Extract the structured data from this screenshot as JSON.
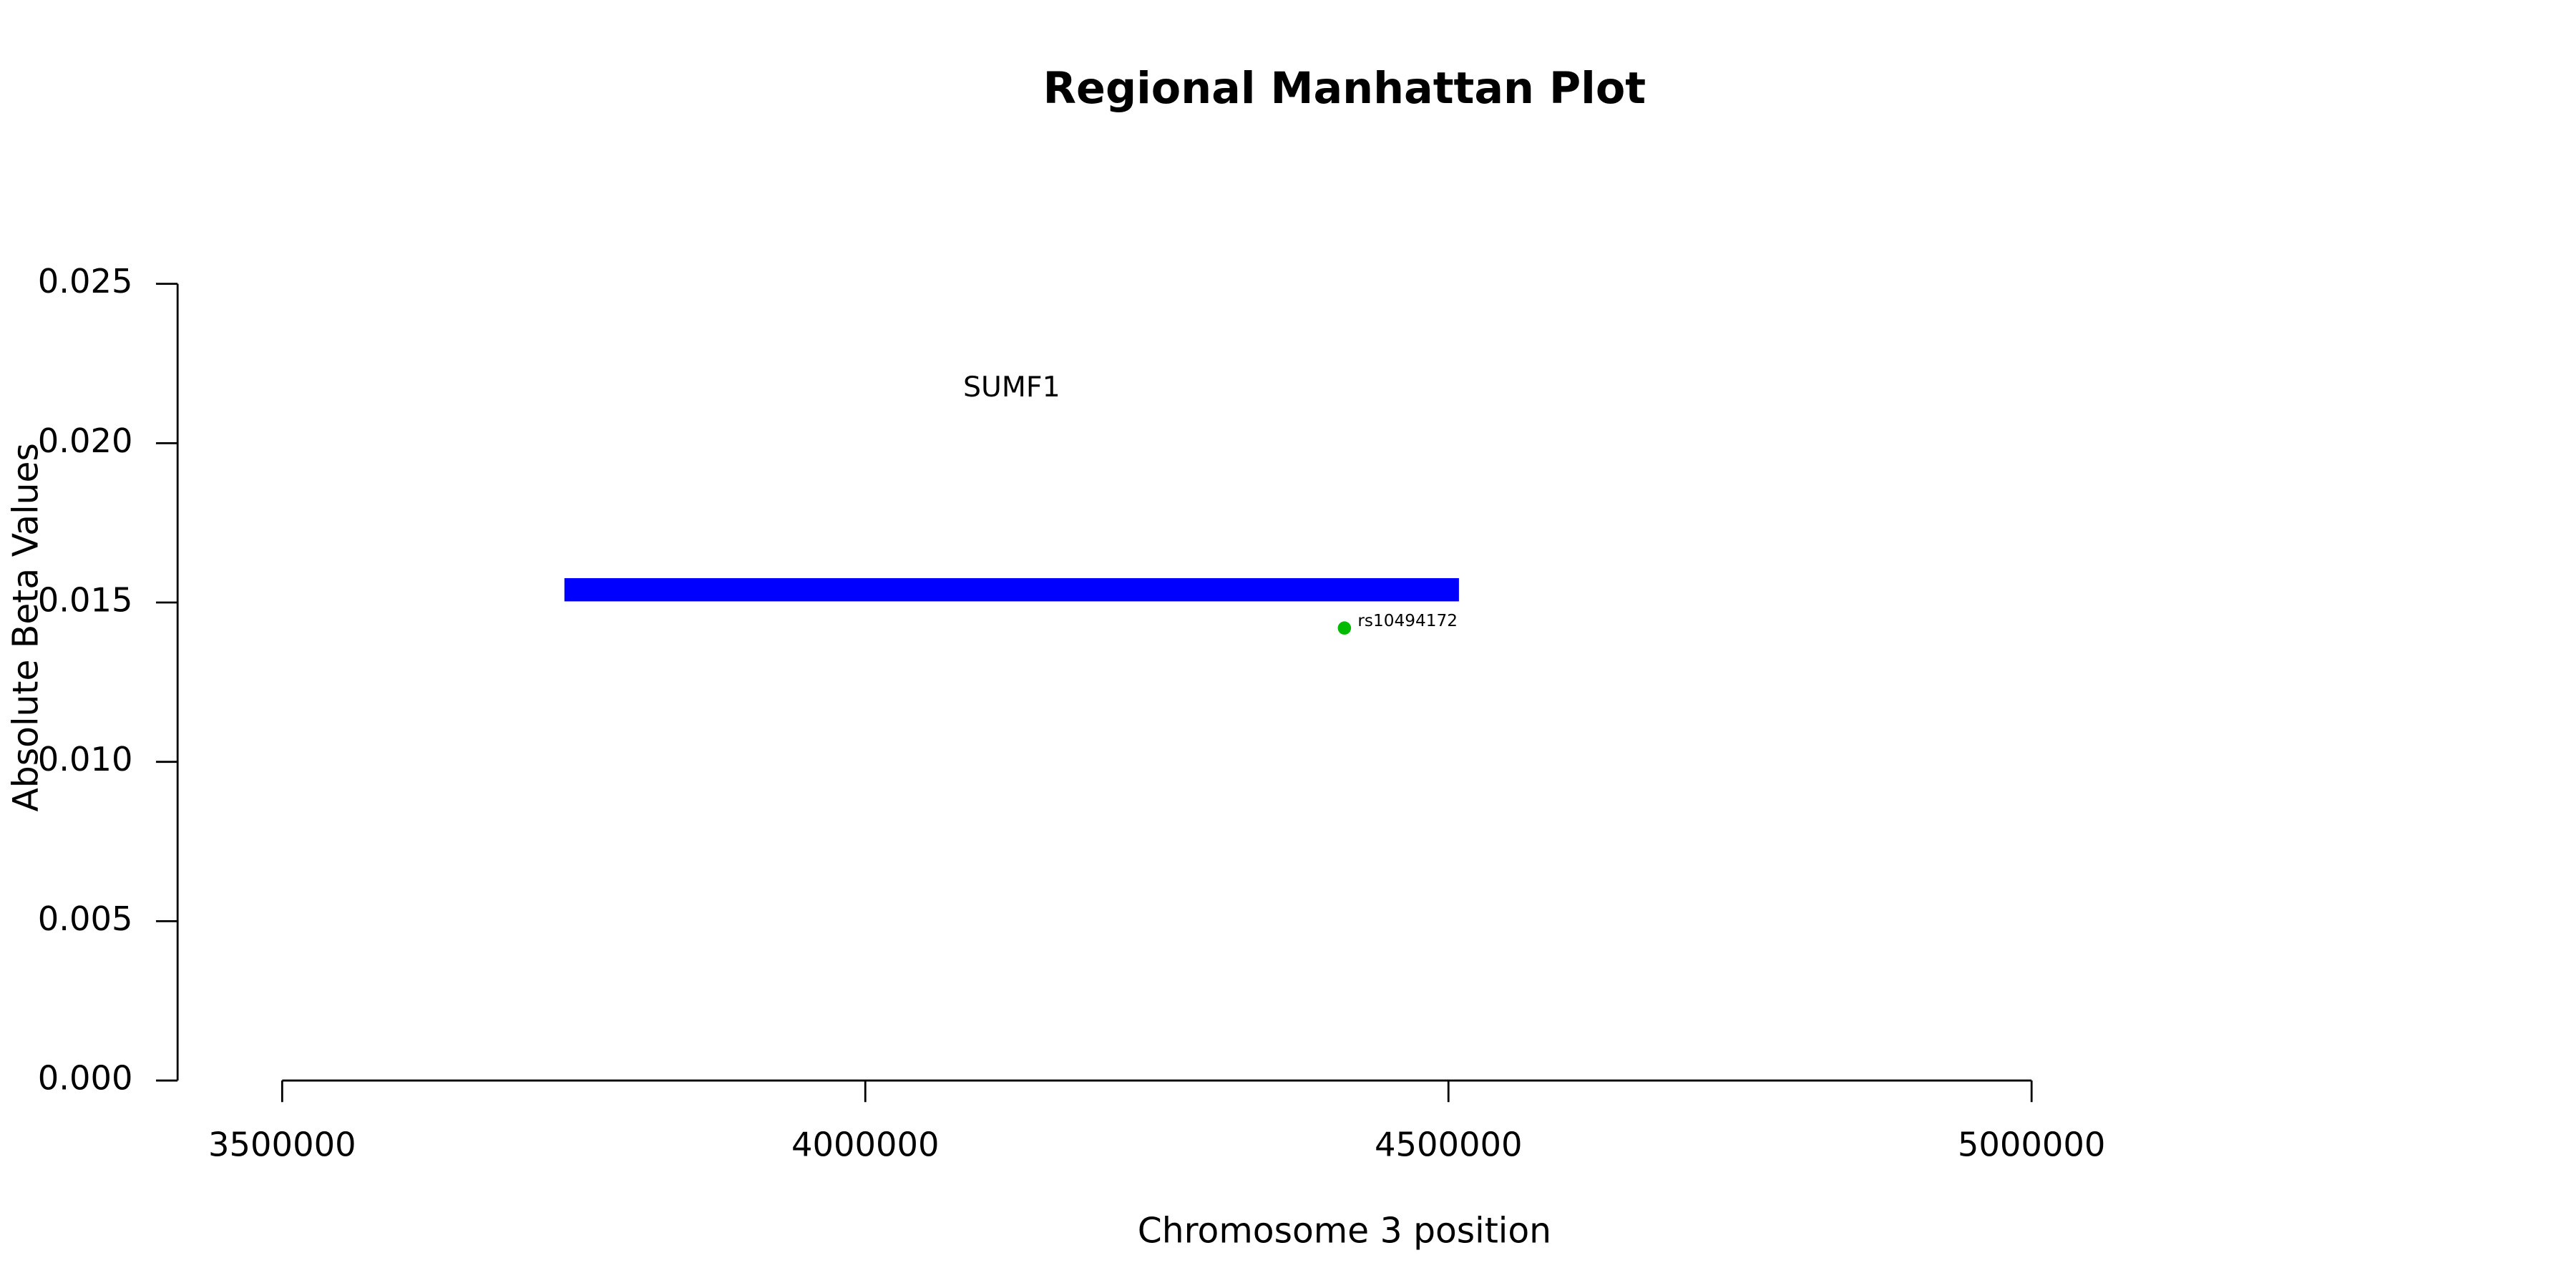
{
  "chart_data": {
    "type": "manhattan",
    "title": "Regional Manhattan Plot",
    "xlabel": "Chromosome 3 position",
    "ylabel": "Absolute Beta Values",
    "xlim": [
      3500000,
      5000000
    ],
    "xticks": [
      3500000,
      4000000,
      4500000,
      5000000
    ],
    "ylim": [
      0,
      0.025
    ],
    "yticks": [
      {
        "value": 0,
        "label": "0.000"
      },
      {
        "value": 0.005,
        "label": "0.005"
      },
      {
        "value": 0.01,
        "label": "0.010"
      },
      {
        "value": 0.015,
        "label": "0.015"
      },
      {
        "value": 0.02,
        "label": "0.020"
      },
      {
        "value": 0.025,
        "label": "0.025"
      }
    ],
    "genes": [
      {
        "name": "SUMF1",
        "start": 3742000,
        "end": 4509000,
        "y": 0.0154,
        "color": "#0000ff"
      }
    ],
    "points": [
      {
        "label": "rs10494172",
        "x": 4410800,
        "y": 0.0142,
        "color": "#00bb00"
      }
    ]
  }
}
